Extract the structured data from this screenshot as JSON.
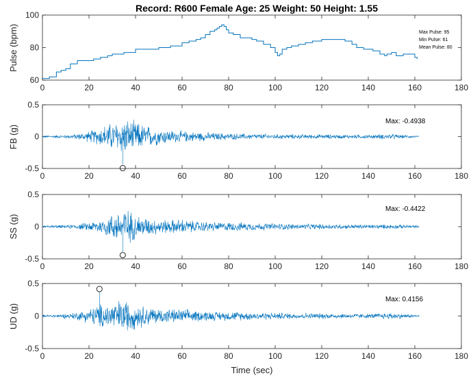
{
  "figure": {
    "title": "Record: R600 Female Age: 25 Weight: 50 Height: 1.55"
  },
  "chart_data": [
    {
      "type": "line",
      "ylabel": "Pulse (bpm)",
      "xlim": [
        0,
        180
      ],
      "ylim": [
        60,
        100
      ],
      "xticks": [
        "0",
        "20",
        "40",
        "60",
        "80",
        "100",
        "120",
        "140",
        "160",
        "180"
      ],
      "yticks": [
        "60",
        "80",
        "100"
      ],
      "annotations": [
        "Max Pulse: 95",
        "Min Pulse: 61",
        "Mean Pulse: 80"
      ],
      "color": "#0072BD",
      "series": [
        {
          "x": [
            0,
            2,
            3,
            5,
            6,
            8,
            10,
            12,
            15,
            18,
            20,
            22,
            25,
            28,
            30,
            32,
            35,
            40,
            45,
            50,
            55,
            58,
            60,
            63,
            66,
            68,
            70,
            72,
            74,
            75,
            76,
            77,
            78,
            79,
            80,
            82,
            85,
            88,
            90,
            92,
            95,
            98,
            100,
            101,
            102,
            103,
            105,
            107,
            110,
            113,
            116,
            120,
            125,
            128,
            130,
            133,
            135,
            138,
            140,
            142,
            145,
            147,
            148,
            150,
            152,
            155,
            157,
            160,
            161
          ],
          "y": [
            61,
            61,
            62,
            62,
            65,
            66,
            67,
            70,
            72,
            72,
            72,
            73,
            74,
            75,
            76,
            76,
            77,
            79,
            79,
            80,
            81,
            81,
            83,
            84,
            85,
            86,
            88,
            90,
            91,
            92,
            93,
            94,
            93,
            91,
            89,
            88,
            86,
            86,
            85,
            84,
            82,
            80,
            77,
            75,
            76,
            79,
            80,
            81,
            82,
            83,
            84,
            85,
            85,
            85,
            84,
            82,
            80,
            79,
            79,
            78,
            76,
            75,
            76,
            77,
            75,
            76,
            76,
            74,
            73
          ]
        }
      ]
    },
    {
      "type": "line",
      "ylabel": "FB (g)",
      "xlim": [
        0,
        180
      ],
      "ylim": [
        -0.5,
        0.5
      ],
      "xticks": [
        "0",
        "20",
        "40",
        "60",
        "80",
        "100",
        "120",
        "140",
        "160",
        "180"
      ],
      "yticks": [
        "-0.5",
        "0",
        "0.5"
      ],
      "annotation": "Max: -0.4938",
      "peak": {
        "x": 34.5,
        "y": -0.4938
      },
      "color": "#0072BD",
      "envelope": {
        "x": [
          0,
          10,
          16,
          20,
          24,
          27,
          30,
          33,
          35,
          37,
          40,
          45,
          50,
          55,
          60,
          65,
          70,
          75,
          80,
          90,
          100,
          110,
          120,
          130,
          140,
          150,
          155,
          160,
          162
        ],
        "amp": [
          0.02,
          0.03,
          0.06,
          0.1,
          0.15,
          0.22,
          0.25,
          0.3,
          0.33,
          0.3,
          0.27,
          0.2,
          0.15,
          0.12,
          0.1,
          0.09,
          0.08,
          0.07,
          0.06,
          0.05,
          0.045,
          0.04,
          0.04,
          0.035,
          0.035,
          0.05,
          0.03,
          0.02,
          0.01
        ]
      }
    },
    {
      "type": "line",
      "ylabel": "SS (g)",
      "xlim": [
        0,
        180
      ],
      "ylim": [
        -0.5,
        0.5
      ],
      "xticks": [
        "0",
        "20",
        "40",
        "60",
        "80",
        "100",
        "120",
        "140",
        "160",
        "180"
      ],
      "yticks": [
        "-0.5",
        "0",
        "0.5"
      ],
      "annotation": "Max: -0.4422",
      "peak": {
        "x": 34.5,
        "y": -0.4422
      },
      "color": "#0072BD",
      "envelope": {
        "x": [
          0,
          10,
          16,
          20,
          24,
          27,
          30,
          33,
          35,
          37,
          40,
          45,
          50,
          55,
          60,
          65,
          70,
          75,
          80,
          90,
          100,
          110,
          120,
          130,
          140,
          150,
          155,
          160,
          162
        ],
        "amp": [
          0.02,
          0.03,
          0.05,
          0.08,
          0.12,
          0.17,
          0.22,
          0.3,
          0.35,
          0.3,
          0.22,
          0.16,
          0.13,
          0.12,
          0.14,
          0.1,
          0.09,
          0.08,
          0.08,
          0.07,
          0.06,
          0.05,
          0.05,
          0.04,
          0.04,
          0.04,
          0.035,
          0.03,
          0.01
        ]
      }
    },
    {
      "type": "line",
      "ylabel": "UD (g)",
      "xlabel": "Time (sec)",
      "xlim": [
        0,
        180
      ],
      "ylim": [
        -0.5,
        0.5
      ],
      "xticks": [
        "0",
        "20",
        "40",
        "60",
        "80",
        "100",
        "120",
        "140",
        "160",
        "180"
      ],
      "yticks": [
        "-0.5",
        "0",
        "0.5"
      ],
      "annotation": "Max: 0.4156",
      "peak": {
        "x": 24.5,
        "y": 0.4156
      },
      "color": "#0072BD",
      "envelope": {
        "x": [
          0,
          10,
          16,
          20,
          24,
          26,
          30,
          33,
          35,
          37,
          40,
          45,
          50,
          55,
          60,
          65,
          70,
          75,
          80,
          90,
          100,
          110,
          120,
          130,
          140,
          150,
          155,
          160,
          162
        ],
        "amp": [
          0.02,
          0.04,
          0.08,
          0.13,
          0.2,
          0.22,
          0.25,
          0.28,
          0.3,
          0.27,
          0.22,
          0.17,
          0.14,
          0.12,
          0.12,
          0.1,
          0.09,
          0.08,
          0.08,
          0.07,
          0.06,
          0.05,
          0.05,
          0.045,
          0.04,
          0.06,
          0.04,
          0.03,
          0.01
        ]
      }
    }
  ]
}
